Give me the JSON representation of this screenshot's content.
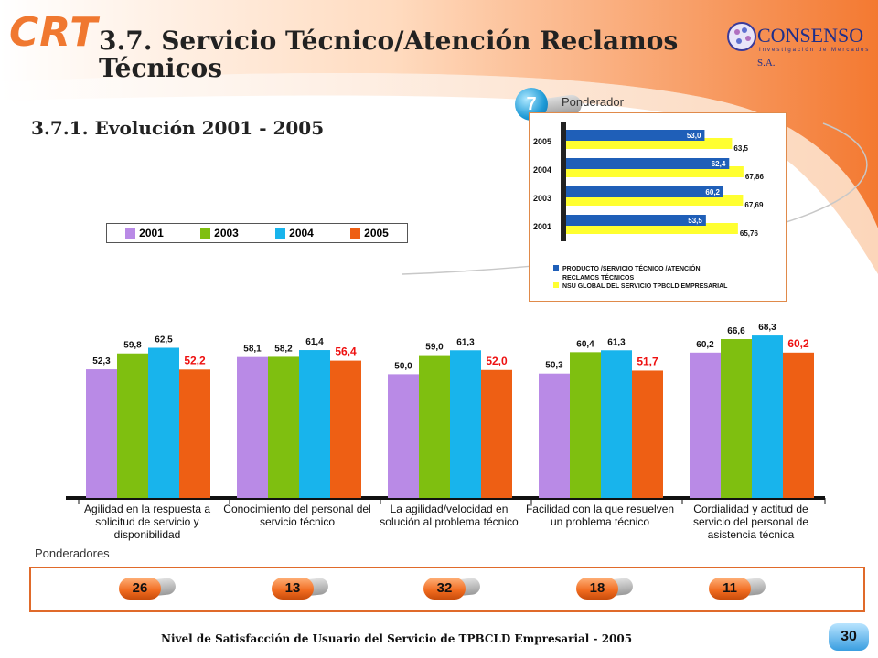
{
  "header": {
    "logo_text": "CRT",
    "title": "3.7. Servicio Técnico/Atención Reclamos Técnicos",
    "subtitle": "3.7.1. Evolución 2001 - 2005",
    "partner_logo": {
      "name": "CONSENSO",
      "suffix": "S.A.",
      "tagline": "Investigación de Mercados"
    }
  },
  "ponderador": {
    "label": "Ponderador",
    "value": "7"
  },
  "ponderadores": {
    "label": "Ponderadores",
    "values": [
      "26",
      "13",
      "32",
      "18",
      "11"
    ]
  },
  "footer": {
    "text": "Nivel de Satisfacción de Usuario del Servicio de TPBCLD Empresarial - 2005",
    "page": "30"
  },
  "colors": {
    "s2001": "#b98ae6",
    "s2003": "#7fbf10",
    "s2004": "#18b4ec",
    "s2005": "#ee5f14",
    "mini_blue": "#1f5fb8",
    "mini_yellow": "#ffff30",
    "accent": "#f07830"
  },
  "chart_data": [
    {
      "type": "bar",
      "categories": [
        "Agilidad en la respuesta a solicitud de servicio y disponibilidad",
        "Conocimiento del personal del servicio técnico",
        "La agilidad/velocidad en solución al problema técnico",
        "Facilidad con la que resuelven un problema técnico",
        "Cordialidad y actitud de servicio del personal de asistencia técnica"
      ],
      "series": [
        {
          "name": "2001",
          "values": [
            52.3,
            58.1,
            50.0,
            50.3,
            60.2
          ],
          "labels": [
            "52,3",
            "58,1",
            "50,0",
            "50,3",
            "60,2"
          ]
        },
        {
          "name": "2003",
          "values": [
            59.8,
            58.2,
            59.0,
            60.4,
            66.6
          ],
          "labels": [
            "59,8",
            "58,2",
            "59,0",
            "60,4",
            "66,6"
          ]
        },
        {
          "name": "2004",
          "values": [
            62.5,
            61.4,
            61.3,
            61.3,
            68.3
          ],
          "labels": [
            "62,5",
            "61,4",
            "61,3",
            "61,3",
            "68,3"
          ]
        },
        {
          "name": "2005",
          "values": [
            52.2,
            56.4,
            52.0,
            51.7,
            60.2
          ],
          "labels": [
            "52,2",
            "56,4",
            "52,0",
            "51,7",
            "60,2"
          ]
        }
      ],
      "ylim": [
        0,
        70
      ],
      "legend": "top",
      "grid": false
    },
    {
      "type": "bar",
      "orientation": "horizontal",
      "categories": [
        "2005",
        "2004",
        "2003",
        "2001"
      ],
      "series": [
        {
          "name": "PRODUCTO /SERVICIO TÉCNICO /ATENCIÓN RECLAMOS TÉCNICOS",
          "values": [
            53.0,
            62.4,
            60.2,
            53.5
          ],
          "labels": [
            "53,0",
            "62,4",
            "60,2",
            "53,5"
          ]
        },
        {
          "name": "NSU GLOBAL DEL SERVICIO TPBCLD EMPRESARIAL",
          "values": [
            63.5,
            67.86,
            67.69,
            65.76
          ],
          "labels": [
            "63,5",
            "67,86",
            "67,69",
            "65,76"
          ]
        }
      ],
      "xlim": [
        0,
        70
      ],
      "legend": "bottom"
    }
  ]
}
